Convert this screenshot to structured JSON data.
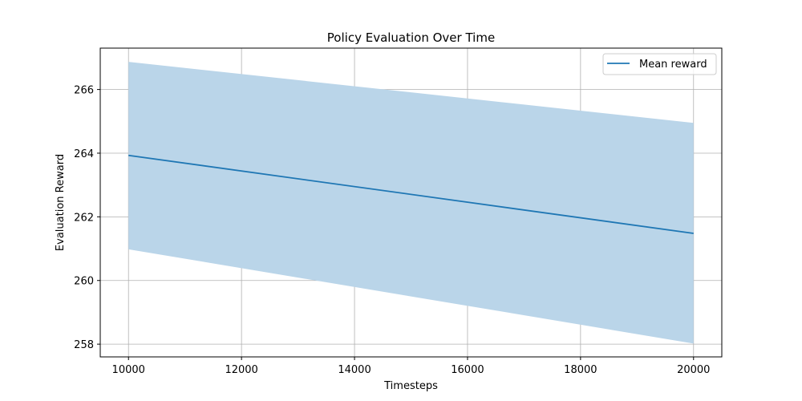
{
  "chart_data": {
    "type": "line",
    "title": "Policy Evaluation Over Time",
    "xlabel": "Timesteps",
    "ylabel": "Evaluation Reward",
    "x": [
      10000,
      20000
    ],
    "series": [
      {
        "name": "Mean reward",
        "values": [
          263.93,
          261.48
        ],
        "band_upper": [
          266.87,
          264.95
        ],
        "band_lower": [
          260.98,
          258.02
        ],
        "color": "#1f77b4",
        "band_color": "#bad5e9"
      }
    ],
    "xlim": [
      9500,
      20500
    ],
    "ylim": [
      257.6,
      267.3
    ],
    "xticks": [
      10000,
      12000,
      14000,
      16000,
      18000,
      20000
    ],
    "yticks": [
      258,
      260,
      262,
      264,
      266
    ],
    "grid": true,
    "legend_position": "top-right"
  }
}
